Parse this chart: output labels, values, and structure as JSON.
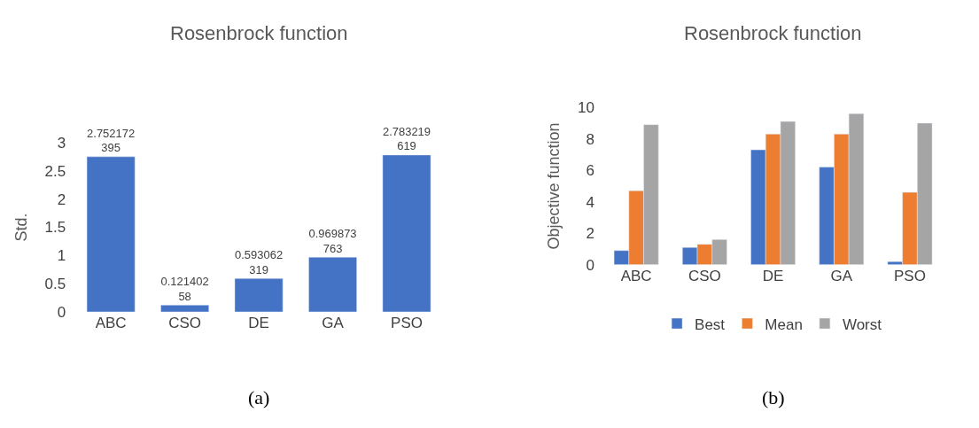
{
  "chart_data": [
    {
      "type": "bar",
      "title": "Rosenbrock function",
      "ylabel": "Std.",
      "categories": [
        "ABC",
        "CSO",
        "DE",
        "GA",
        "PSO"
      ],
      "values": [
        2.752172395,
        0.12140258,
        0.593062319,
        0.969873763,
        2.783219619
      ],
      "color": "#4472c4",
      "ylim": [
        0,
        3
      ],
      "yticks": [
        0,
        0.5,
        1,
        1.5,
        2,
        2.5,
        3
      ],
      "data_labels": true,
      "annotations": [
        "(a)"
      ]
    },
    {
      "type": "bar",
      "title": "Rosenbrock function",
      "ylabel": "Objective function",
      "categories": [
        "ABC",
        "CSO",
        "DE",
        "GA",
        "PSO"
      ],
      "series": [
        {
          "name": "Best",
          "color": "#4472c4",
          "values": [
            0.9,
            1.1,
            7.3,
            6.2,
            0.2
          ]
        },
        {
          "name": "Mean",
          "color": "#ed7d31",
          "values": [
            4.7,
            1.3,
            8.3,
            8.3,
            4.6
          ]
        },
        {
          "name": "Worst",
          "color": "#a5a5a5",
          "values": [
            8.9,
            1.6,
            9.1,
            9.6,
            9.0
          ]
        }
      ],
      "ylim": [
        0,
        10
      ],
      "yticks": [
        0,
        2,
        4,
        6,
        8,
        10
      ],
      "legend": "bottom",
      "annotations": [
        "(b)"
      ]
    }
  ]
}
